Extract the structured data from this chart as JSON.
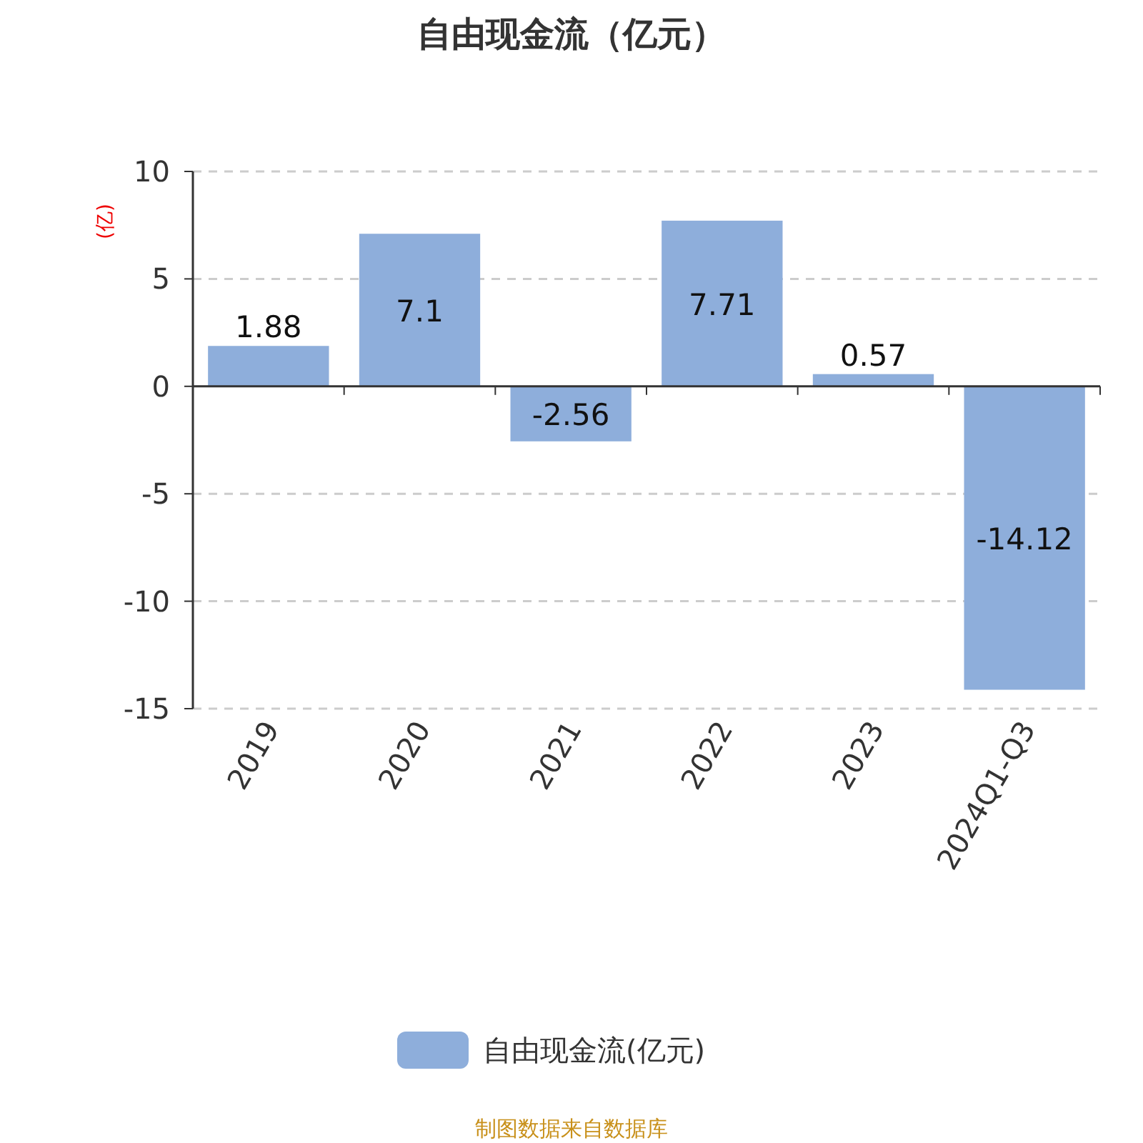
{
  "chart_data": {
    "type": "bar",
    "title": "自由现金流（亿元）",
    "ylabel": "(亿)",
    "categories": [
      "2019",
      "2020",
      "2021",
      "2022",
      "2023",
      "2024Q1-Q3"
    ],
    "series": [
      {
        "name": "自由现金流(亿元)",
        "color": "#8eaedb",
        "values": [
          1.88,
          7.1,
          -2.56,
          7.71,
          0.57,
          -14.12
        ]
      }
    ],
    "ylim": [
      -15,
      10
    ],
    "yticks": [
      -15,
      -10,
      -5,
      0,
      5,
      10
    ],
    "grid": "y",
    "legend": "bottom",
    "data_labels": true,
    "annotations": [
      "制图数据来自数据库"
    ]
  }
}
